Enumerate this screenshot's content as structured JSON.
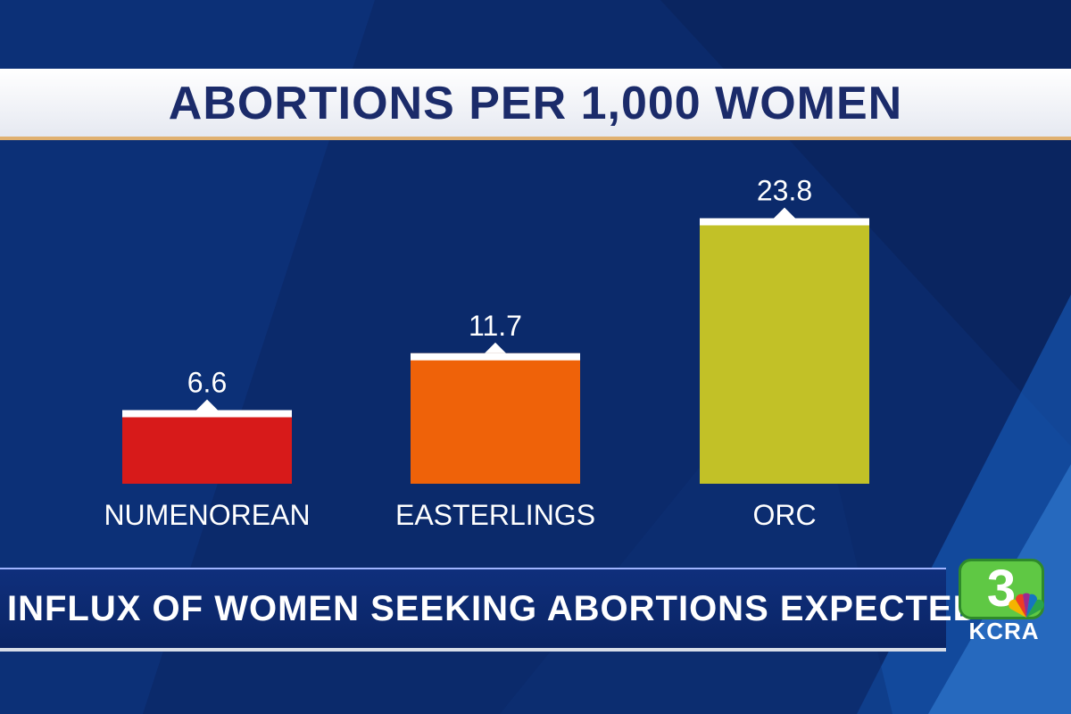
{
  "chart_data": {
    "type": "bar",
    "title": "ABORTIONS PER 1,000 WOMEN",
    "categories": [
      "NUMENOREAN",
      "EASTERLINGS",
      "ORC"
    ],
    "values": [
      6.6,
      11.7,
      23.8
    ],
    "value_labels": [
      "6.6",
      "11.7",
      "23.8"
    ],
    "colors": [
      "#d71a1a",
      "#ef6209",
      "#c2c127"
    ],
    "ylim": [
      0,
      24
    ],
    "grid": false,
    "xlabel": "",
    "ylabel": ""
  },
  "lower_third": {
    "headline": "INFLUX OF WOMEN SEEKING  ABORTIONS EXPECTED"
  },
  "station": {
    "channel": "3",
    "call_sign": "KCRA",
    "logo_icon": "nbc-peacock-icon"
  },
  "colors": {
    "background": "#0b2a6b",
    "title_text": "#1b2b6a",
    "bar_cap": "#ffffff",
    "label_text": "#ffffff"
  }
}
